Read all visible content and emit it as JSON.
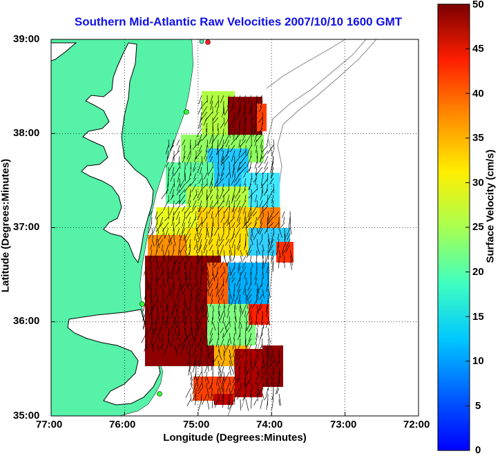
{
  "title": "Southern Mid-Atlantic Raw Velocities 2007/10/10 1600 GMT",
  "x_axis": {
    "label": "Longitude (Degrees:Minutes)",
    "ticks": [
      "77:00",
      "76:00",
      "75:00",
      "74:00",
      "73:00",
      "72:00"
    ]
  },
  "y_axis": {
    "label": "Latitude (Degrees:Minutes)",
    "ticks": [
      "39:00",
      "38:00",
      "37:00",
      "36:00",
      "35:00"
    ]
  },
  "colorbar": {
    "label": "Surface Velocity (cm/s)",
    "ticks": [
      "50",
      "45",
      "40",
      "35",
      "30",
      "25",
      "20",
      "15",
      "10",
      "5",
      "0"
    ],
    "range": [
      0,
      50
    ],
    "colormap": "jet"
  },
  "colors": {
    "land": "#55f2a8",
    "title": "#1010e6",
    "coastline": "#000000",
    "bathymetry": "#9a9a9a"
  }
}
